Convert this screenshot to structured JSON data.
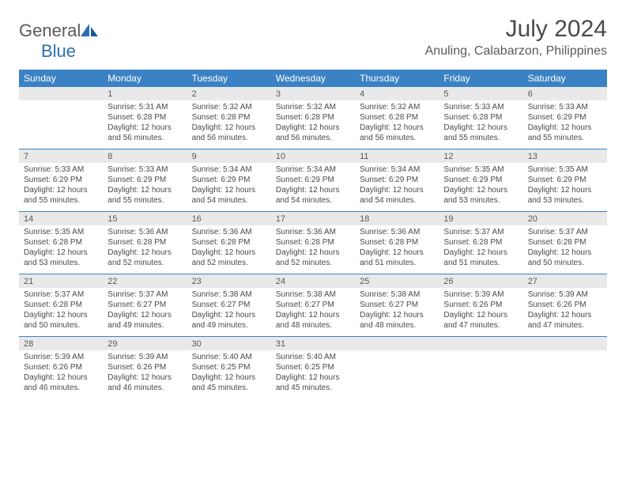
{
  "logo": {
    "text_gray": "General",
    "text_blue": "Blue"
  },
  "title": "July 2024",
  "location": "Anuling, Calabarzon, Philippines",
  "colors": {
    "header_bg": "#3b82c4",
    "header_text": "#ffffff",
    "daynum_bg": "#e9e9e9",
    "text": "#4a4a4a",
    "rule": "#3b82c4"
  },
  "day_names": [
    "Sunday",
    "Monday",
    "Tuesday",
    "Wednesday",
    "Thursday",
    "Friday",
    "Saturday"
  ],
  "weeks": [
    [
      {
        "day": "",
        "sunrise": "",
        "sunset": "",
        "daylight": ""
      },
      {
        "day": "1",
        "sunrise": "Sunrise: 5:31 AM",
        "sunset": "Sunset: 6:28 PM",
        "daylight": "Daylight: 12 hours and 56 minutes."
      },
      {
        "day": "2",
        "sunrise": "Sunrise: 5:32 AM",
        "sunset": "Sunset: 6:28 PM",
        "daylight": "Daylight: 12 hours and 56 minutes."
      },
      {
        "day": "3",
        "sunrise": "Sunrise: 5:32 AM",
        "sunset": "Sunset: 6:28 PM",
        "daylight": "Daylight: 12 hours and 56 minutes."
      },
      {
        "day": "4",
        "sunrise": "Sunrise: 5:32 AM",
        "sunset": "Sunset: 6:28 PM",
        "daylight": "Daylight: 12 hours and 56 minutes."
      },
      {
        "day": "5",
        "sunrise": "Sunrise: 5:33 AM",
        "sunset": "Sunset: 6:28 PM",
        "daylight": "Daylight: 12 hours and 55 minutes."
      },
      {
        "day": "6",
        "sunrise": "Sunrise: 5:33 AM",
        "sunset": "Sunset: 6:29 PM",
        "daylight": "Daylight: 12 hours and 55 minutes."
      }
    ],
    [
      {
        "day": "7",
        "sunrise": "Sunrise: 5:33 AM",
        "sunset": "Sunset: 6:29 PM",
        "daylight": "Daylight: 12 hours and 55 minutes."
      },
      {
        "day": "8",
        "sunrise": "Sunrise: 5:33 AM",
        "sunset": "Sunset: 6:29 PM",
        "daylight": "Daylight: 12 hours and 55 minutes."
      },
      {
        "day": "9",
        "sunrise": "Sunrise: 5:34 AM",
        "sunset": "Sunset: 6:29 PM",
        "daylight": "Daylight: 12 hours and 54 minutes."
      },
      {
        "day": "10",
        "sunrise": "Sunrise: 5:34 AM",
        "sunset": "Sunset: 6:29 PM",
        "daylight": "Daylight: 12 hours and 54 minutes."
      },
      {
        "day": "11",
        "sunrise": "Sunrise: 5:34 AM",
        "sunset": "Sunset: 6:29 PM",
        "daylight": "Daylight: 12 hours and 54 minutes."
      },
      {
        "day": "12",
        "sunrise": "Sunrise: 5:35 AM",
        "sunset": "Sunset: 6:29 PM",
        "daylight": "Daylight: 12 hours and 53 minutes."
      },
      {
        "day": "13",
        "sunrise": "Sunrise: 5:35 AM",
        "sunset": "Sunset: 6:29 PM",
        "daylight": "Daylight: 12 hours and 53 minutes."
      }
    ],
    [
      {
        "day": "14",
        "sunrise": "Sunrise: 5:35 AM",
        "sunset": "Sunset: 6:28 PM",
        "daylight": "Daylight: 12 hours and 53 minutes."
      },
      {
        "day": "15",
        "sunrise": "Sunrise: 5:36 AM",
        "sunset": "Sunset: 6:28 PM",
        "daylight": "Daylight: 12 hours and 52 minutes."
      },
      {
        "day": "16",
        "sunrise": "Sunrise: 5:36 AM",
        "sunset": "Sunset: 6:28 PM",
        "daylight": "Daylight: 12 hours and 52 minutes."
      },
      {
        "day": "17",
        "sunrise": "Sunrise: 5:36 AM",
        "sunset": "Sunset: 6:28 PM",
        "daylight": "Daylight: 12 hours and 52 minutes."
      },
      {
        "day": "18",
        "sunrise": "Sunrise: 5:36 AM",
        "sunset": "Sunset: 6:28 PM",
        "daylight": "Daylight: 12 hours and 51 minutes."
      },
      {
        "day": "19",
        "sunrise": "Sunrise: 5:37 AM",
        "sunset": "Sunset: 6:28 PM",
        "daylight": "Daylight: 12 hours and 51 minutes."
      },
      {
        "day": "20",
        "sunrise": "Sunrise: 5:37 AM",
        "sunset": "Sunset: 6:28 PM",
        "daylight": "Daylight: 12 hours and 50 minutes."
      }
    ],
    [
      {
        "day": "21",
        "sunrise": "Sunrise: 5:37 AM",
        "sunset": "Sunset: 6:28 PM",
        "daylight": "Daylight: 12 hours and 50 minutes."
      },
      {
        "day": "22",
        "sunrise": "Sunrise: 5:37 AM",
        "sunset": "Sunset: 6:27 PM",
        "daylight": "Daylight: 12 hours and 49 minutes."
      },
      {
        "day": "23",
        "sunrise": "Sunrise: 5:38 AM",
        "sunset": "Sunset: 6:27 PM",
        "daylight": "Daylight: 12 hours and 49 minutes."
      },
      {
        "day": "24",
        "sunrise": "Sunrise: 5:38 AM",
        "sunset": "Sunset: 6:27 PM",
        "daylight": "Daylight: 12 hours and 48 minutes."
      },
      {
        "day": "25",
        "sunrise": "Sunrise: 5:38 AM",
        "sunset": "Sunset: 6:27 PM",
        "daylight": "Daylight: 12 hours and 48 minutes."
      },
      {
        "day": "26",
        "sunrise": "Sunrise: 5:39 AM",
        "sunset": "Sunset: 6:26 PM",
        "daylight": "Daylight: 12 hours and 47 minutes."
      },
      {
        "day": "27",
        "sunrise": "Sunrise: 5:39 AM",
        "sunset": "Sunset: 6:26 PM",
        "daylight": "Daylight: 12 hours and 47 minutes."
      }
    ],
    [
      {
        "day": "28",
        "sunrise": "Sunrise: 5:39 AM",
        "sunset": "Sunset: 6:26 PM",
        "daylight": "Daylight: 12 hours and 46 minutes."
      },
      {
        "day": "29",
        "sunrise": "Sunrise: 5:39 AM",
        "sunset": "Sunset: 6:26 PM",
        "daylight": "Daylight: 12 hours and 46 minutes."
      },
      {
        "day": "30",
        "sunrise": "Sunrise: 5:40 AM",
        "sunset": "Sunset: 6:25 PM",
        "daylight": "Daylight: 12 hours and 45 minutes."
      },
      {
        "day": "31",
        "sunrise": "Sunrise: 5:40 AM",
        "sunset": "Sunset: 6:25 PM",
        "daylight": "Daylight: 12 hours and 45 minutes."
      },
      {
        "day": "",
        "sunrise": "",
        "sunset": "",
        "daylight": ""
      },
      {
        "day": "",
        "sunrise": "",
        "sunset": "",
        "daylight": ""
      },
      {
        "day": "",
        "sunrise": "",
        "sunset": "",
        "daylight": ""
      }
    ]
  ]
}
